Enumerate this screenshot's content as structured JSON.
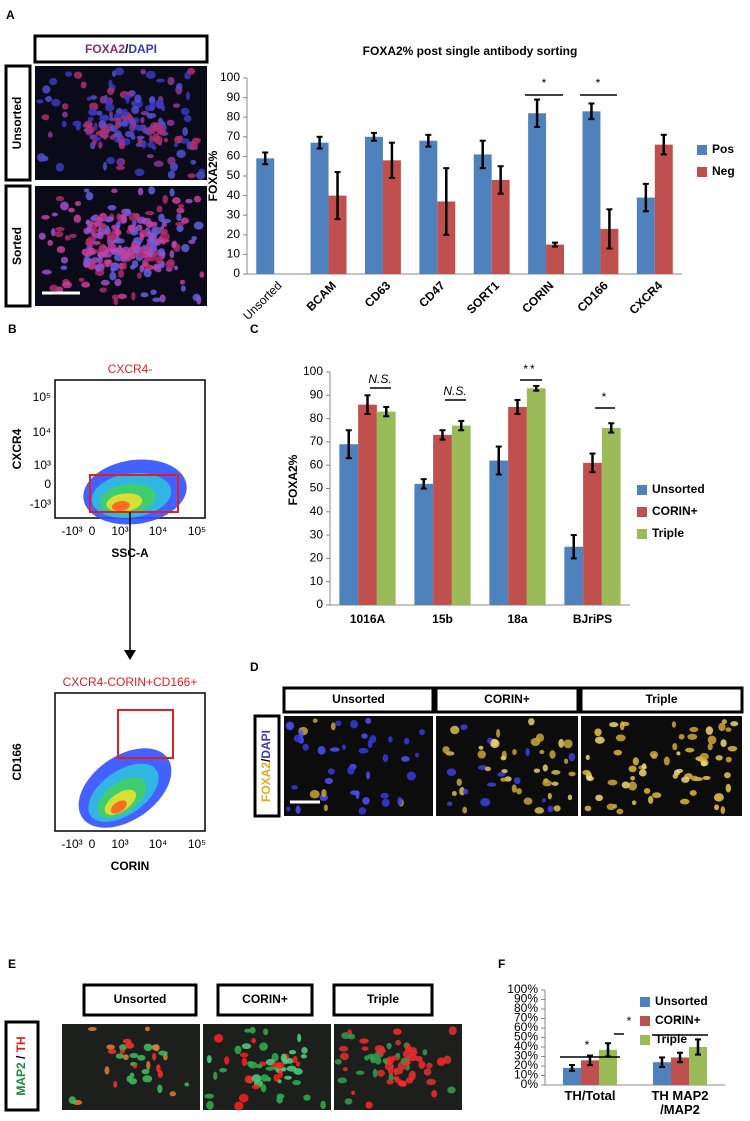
{
  "panels": {
    "A": {
      "label": "A",
      "stain": [
        "FOXA2",
        "/",
        "DAPI"
      ],
      "rows": [
        "Unsorted",
        "Sorted"
      ]
    },
    "B": {
      "label": "B",
      "plots": [
        {
          "title": "CXCR4-",
          "ylabel": "CXCR4",
          "xlabel": "SSC-A",
          "yticks": [
            "10⁵",
            "10⁴",
            "10³",
            "0",
            "-10³"
          ],
          "xticks": [
            "-10³",
            "0",
            "10³",
            "10⁴",
            "10⁵"
          ]
        },
        {
          "title": "CXCR4-CORIN+CD166+",
          "ylabel": "CD166",
          "xlabel": "CORIN",
          "xticks": [
            "-10³",
            "0",
            "10³",
            "10⁴",
            "10⁵"
          ]
        }
      ]
    },
    "C": {
      "label": "C"
    },
    "D": {
      "label": "D",
      "columns": [
        "Unsorted",
        "CORIN+",
        "Triple"
      ],
      "stain": [
        "FOXA2",
        "/",
        "DAPI"
      ]
    },
    "E": {
      "label": "E",
      "columns": [
        "Unsorted",
        "CORIN+",
        "Triple"
      ],
      "stain": [
        "MAP2",
        " / ",
        "TH"
      ]
    },
    "F": {
      "label": "F"
    }
  },
  "chart_data": [
    {
      "type": "bar",
      "title": "FOXA2% post single antibody sorting",
      "ylabel": "FOXA2%",
      "categories": [
        "Unsorted",
        "BCAM",
        "CD63",
        "CD47",
        "SORT1",
        "CORIN",
        "CD166",
        "CXCR4"
      ],
      "series": [
        {
          "name": "Pos",
          "color": "#4f81bd",
          "values": [
            59,
            67,
            70,
            68,
            61,
            82,
            83,
            39
          ],
          "errors": [
            3,
            3,
            2,
            3,
            7,
            7,
            4,
            7
          ]
        },
        {
          "name": "Neg",
          "color": "#c0504d",
          "values": [
            null,
            40,
            58,
            37,
            48,
            15,
            23,
            66
          ],
          "errors": [
            null,
            12,
            9,
            17,
            7,
            1,
            10,
            5
          ]
        }
      ],
      "ylim": [
        0,
        100
      ],
      "yticks": [
        0,
        10,
        20,
        30,
        40,
        50,
        60,
        70,
        80,
        90,
        100
      ],
      "annotations": [
        "*",
        "*"
      ]
    },
    {
      "type": "bar",
      "ylabel": "FOXA2%",
      "categories": [
        "1016A",
        "15b",
        "18a",
        "BJriPS"
      ],
      "series": [
        {
          "name": "Unsorted",
          "color": "#4f81bd",
          "values": [
            69,
            52,
            62,
            25
          ],
          "errors": [
            6,
            2,
            6,
            5
          ]
        },
        {
          "name": "CORIN+",
          "color": "#c0504d",
          "values": [
            86,
            73,
            85,
            61
          ],
          "errors": [
            4,
            2,
            3,
            4
          ]
        },
        {
          "name": "Triple",
          "color": "#9bbb59",
          "values": [
            83,
            77,
            93,
            76
          ],
          "errors": [
            2,
            2,
            1,
            2
          ]
        }
      ],
      "ylim": [
        0,
        100
      ],
      "yticks": [
        0,
        10,
        20,
        30,
        40,
        50,
        60,
        70,
        80,
        90,
        100
      ],
      "annotations": [
        "N.S.",
        "N.S.",
        "**",
        "*"
      ]
    },
    {
      "type": "bar",
      "categories": [
        "TH/Total",
        "TH MAP2 /MAP2"
      ],
      "series": [
        {
          "name": "Unsorted",
          "color": "#4f81bd",
          "values": [
            18,
            24
          ],
          "errors": [
            3,
            5
          ]
        },
        {
          "name": "CORIN+",
          "color": "#c0504d",
          "values": [
            26,
            29
          ],
          "errors": [
            5,
            5
          ]
        },
        {
          "name": "Triple",
          "color": "#9bbb59",
          "values": [
            37,
            40
          ],
          "errors": [
            7,
            8
          ]
        }
      ],
      "ylim": [
        0,
        100
      ],
      "yticks": [
        {
          "value": 0,
          "label": "0%"
        },
        {
          "value": 10,
          "label": "10%"
        },
        {
          "value": 20,
          "label": "20%"
        },
        {
          "value": 30,
          "label": "30%"
        },
        {
          "value": 40,
          "label": "40%"
        },
        {
          "value": 50,
          "label": "50%"
        },
        {
          "value": 60,
          "label": "60%"
        },
        {
          "value": 70,
          "label": "70%"
        },
        {
          "value": 80,
          "label": "80%"
        },
        {
          "value": 90,
          "label": "90%"
        },
        {
          "value": 100,
          "label": "100%"
        }
      ],
      "annotations": [
        "*",
        "*",
        "*"
      ]
    }
  ]
}
